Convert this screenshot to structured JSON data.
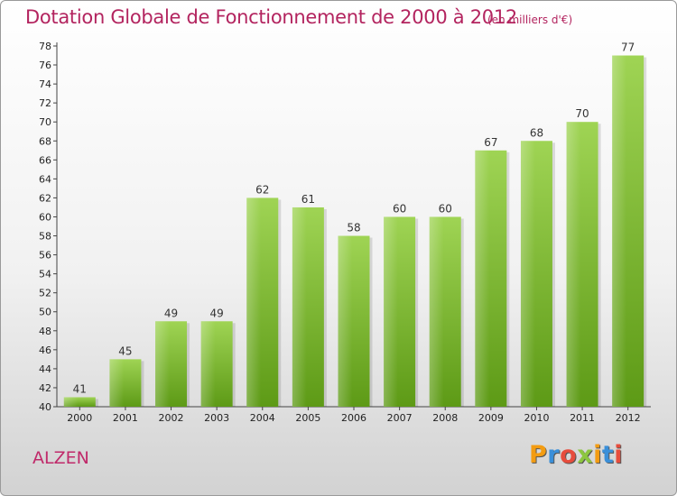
{
  "title": "Dotation Globale de Fonctionnement de 2000 à 2012",
  "subtitle": "(en milliers d'€)",
  "commune": "ALZEN",
  "logo": {
    "letters": [
      "P",
      "r",
      "o",
      "x",
      "i",
      "t",
      "i"
    ],
    "colors": [
      "#f39c12",
      "#3a8fd9",
      "#e74c3c",
      "#8cc63f",
      "#f39c12",
      "#3a8fd9",
      "#e74c3c"
    ]
  },
  "chart_data": {
    "type": "bar",
    "categories": [
      "2000",
      "2001",
      "2002",
      "2003",
      "2004",
      "2005",
      "2006",
      "2007",
      "2008",
      "2009",
      "2010",
      "2011",
      "2012"
    ],
    "values": [
      41,
      45,
      49,
      49,
      62,
      61,
      58,
      60,
      60,
      67,
      68,
      70,
      77
    ],
    "title": "Dotation Globale de Fonctionnement de 2000 à 2012",
    "subtitle": "(en milliers d'€)",
    "ylim": [
      40,
      78
    ],
    "yticks": [
      40,
      42,
      44,
      46,
      48,
      50,
      52,
      54,
      56,
      58,
      60,
      62,
      64,
      66,
      68,
      70,
      72,
      74,
      76,
      78
    ],
    "grid": false,
    "bar_color": "#8cc63f"
  }
}
